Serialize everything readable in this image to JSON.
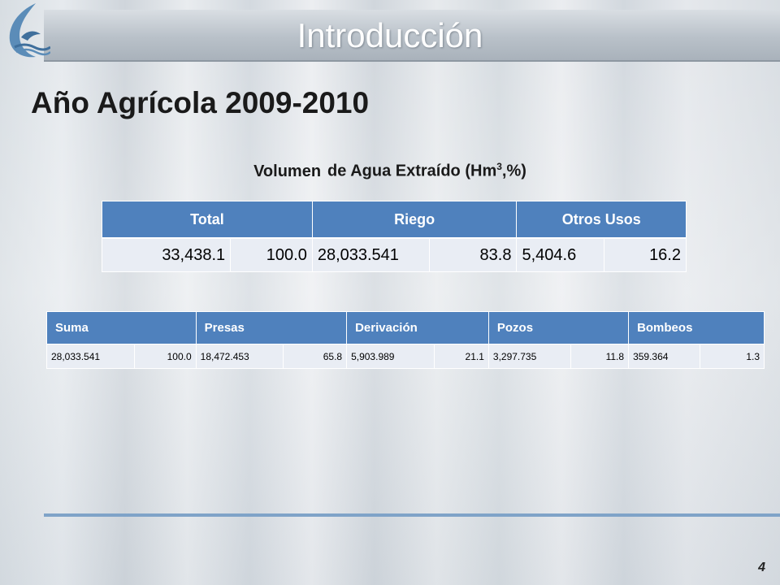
{
  "header": {
    "title": "Introducción"
  },
  "subtitle": "Año Agrícola 2009-2010",
  "caption": {
    "pre": "Volumen",
    "main": "de Agua Extraído (Hm",
    "sup": "3",
    "post": ",%)"
  },
  "table1": {
    "headers": [
      "Total",
      "Riego",
      "Otros Usos"
    ],
    "row": [
      "33,438.1",
      "100.0",
      "28,033.541",
      "83.8",
      "5,404.6",
      "16.2"
    ]
  },
  "table2": {
    "headers": [
      "Suma",
      "Presas",
      "Derivación",
      "Pozos",
      "Bombeos"
    ],
    "row": [
      "28,033.541",
      "100.0",
      "18,472.453",
      "65.8",
      "5,903.989",
      "21.1",
      "3,297.735",
      "11.8",
      "359.364",
      "1.3"
    ]
  },
  "page_number": "4",
  "colors": {
    "header_blue": "#4f81bd",
    "cell_bg": "#e9edf4",
    "footer_line": "#7fa3c8"
  },
  "icons": {
    "logo": "water-logo-icon"
  }
}
